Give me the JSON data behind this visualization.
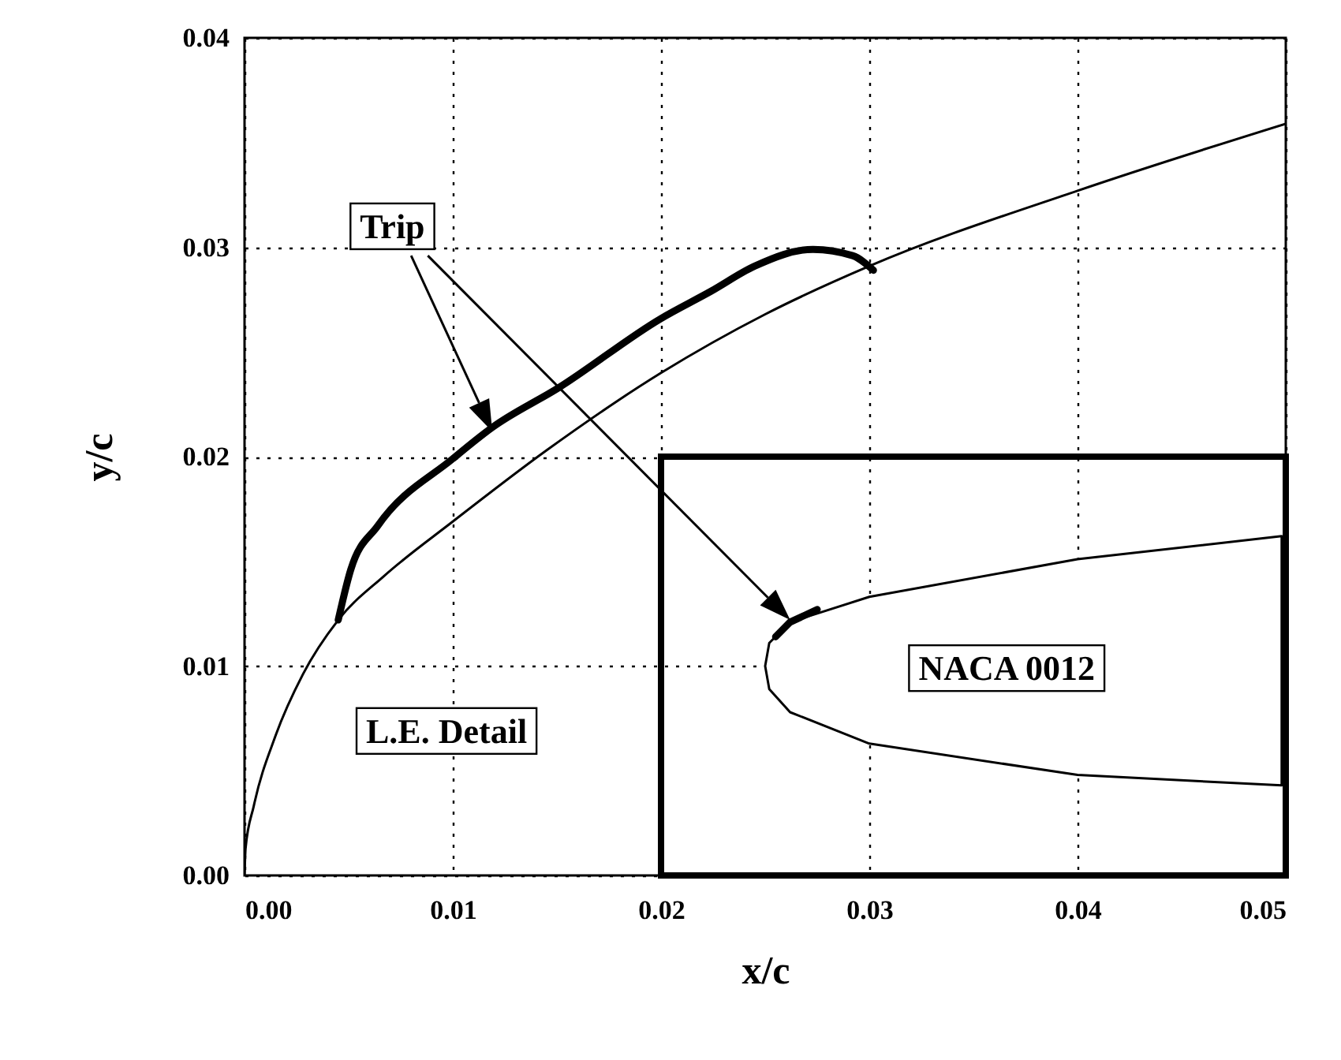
{
  "chart_data": {
    "type": "line",
    "xlabel": "x/c",
    "ylabel": "y/c",
    "xlim": [
      0,
      0.05
    ],
    "ylim": [
      0,
      0.04
    ],
    "xticks": [
      {
        "value": 0,
        "label": "0.00"
      },
      0.01,
      0.02,
      0.03,
      0.04,
      0.05
    ],
    "yticks": [
      {
        "value": 0,
        "label": "0.00"
      },
      0.01,
      0.02,
      0.03,
      0.04
    ],
    "grid": true,
    "annotations": [
      "Trip",
      "L.E. Detail",
      "NACA 0012"
    ],
    "series": [
      {
        "color": "#000000",
        "x": [
          0,
          5e-05,
          0.00044,
          0.0015,
          0.0028,
          0.0045,
          0.0067,
          0.01,
          0.0145,
          0.02,
          0.025,
          0.03,
          0.04,
          0.05
        ],
        "values": [
          0,
          0.0013,
          0.0033,
          0.0067,
          0.0096,
          0.0122,
          0.0143,
          0.0169,
          0.0203,
          0.024,
          0.0268,
          0.0291,
          0.0327,
          0.0359
        ]
      },
      {
        "color": "#000000",
        "x": [
          0.0045,
          0.0051,
          0.0064,
          0.01,
          0.0119,
          0.0151,
          0.02,
          0.0224,
          0.0245,
          0.0273,
          0.0292,
          0.0302
        ],
        "values": [
          0.0122,
          0.0146,
          0.0167,
          0.0199,
          0.0214,
          0.0233,
          0.0266,
          0.0279,
          0.0291,
          0.0299,
          0.0296,
          0.0289
        ]
      }
    ]
  }
}
